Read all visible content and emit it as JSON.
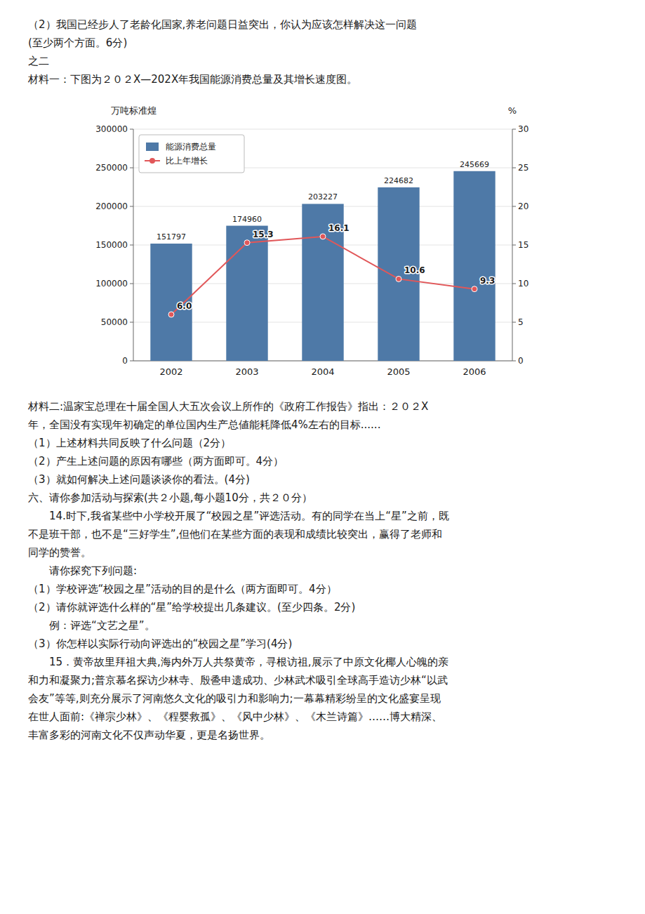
{
  "text_above": [
    "（2）我国已经步人了老龄化国家,养老问题日益突出，你认为应该怎样解决这一问题",
    "(至少两个方面。6分)",
    "之二",
    "材料一：下图为２０２X—202X年我国能源消费总量及其增长速度图。"
  ],
  "chart_data": {
    "type": "bar",
    "categories": [
      "2002",
      "2003",
      "2004",
      "2005",
      "2006"
    ],
    "series": [
      {
        "name": "能源消费总量",
        "type": "bar",
        "color": "#4e79a7",
        "values": [
          151797,
          174960,
          203227,
          224682,
          245669
        ]
      },
      {
        "name": "比上年增长",
        "type": "line",
        "axis": "y2",
        "color": "#e15759",
        "marker": "circle",
        "values": [
          6.0,
          15.3,
          16.1,
          10.6,
          9.3
        ],
        "value_labels": [
          "6.0",
          "15.3",
          "16.1",
          "10.6",
          "9.3"
        ]
      }
    ],
    "y_label": "万吨标准煌",
    "y2_label": "%",
    "ylim": [
      0,
      300000
    ],
    "yticks": [
      0,
      50000,
      100000,
      150000,
      200000,
      250000,
      300000
    ],
    "y2lim": [
      0,
      30
    ],
    "y2ticks": [
      0,
      5,
      10,
      15,
      20,
      25,
      30
    ],
    "grid": true,
    "legend": "upper left",
    "data_labels": true
  },
  "text_below": [
    "材料二:温家宝总理在十届全国人大五次会议上所作的《政府工作报告》指出：２０２X",
    "年，全国没有实现年初确定的单位国内生产总値能耗降低4%左右的目标......",
    "（1）上述材料共同反映了什么问题（2分）",
    "（2）产生上述问题的原因有哪些（两方面即可。4分）",
    "（3）就如何解决上述问题谈谈你的看法。(4分)",
    "六、请你参加活动与探索(共２小题,每小题10分，共２０分）",
    "　　14.时下,我省某些中小学校开展了“校园之星”评选活动。有的同学在当上“星”之前，既",
    "不是班干部，也不是“三好学生”,但他们在某些方面的表现和成绩比较突出，赢得了老师和",
    "同学的赞誉。",
    "　　请你探究下列问题:",
    "（1）学校评选“校园之星”活动的目的是什么（两方面即可。4分）",
    "（2）请你就评选什么样的“星”给学校提出几条建议。(至少四条。2分)",
    "　　例：评选“文艺之星”。",
    "（3）你怎样以实际行动向评选出的“校园之星”学习(4分)",
    "　　15．黄帝故里拜祖大典,海内外万人共祭黄帝，寻根访祖,展示了中原文化椰人心魄的亲",
    "和力和凝聚力;普京慕名探访少林寺、殷巹申遗成功、少林武术吸引全球高手造访少林“以武",
    "会友”等等,则充分展示了河南悠久文化的吸引力和影响力;一幕幕精彩纷呈的文化盛宴呈现",
    "在世人面前:《禅宗少林》、《程婴救孤》、《风中少林》、《木兰诗篇》……博大精深、",
    "丰富多彩的河南文化不仅声动华夏，更是名扬世界。"
  ]
}
